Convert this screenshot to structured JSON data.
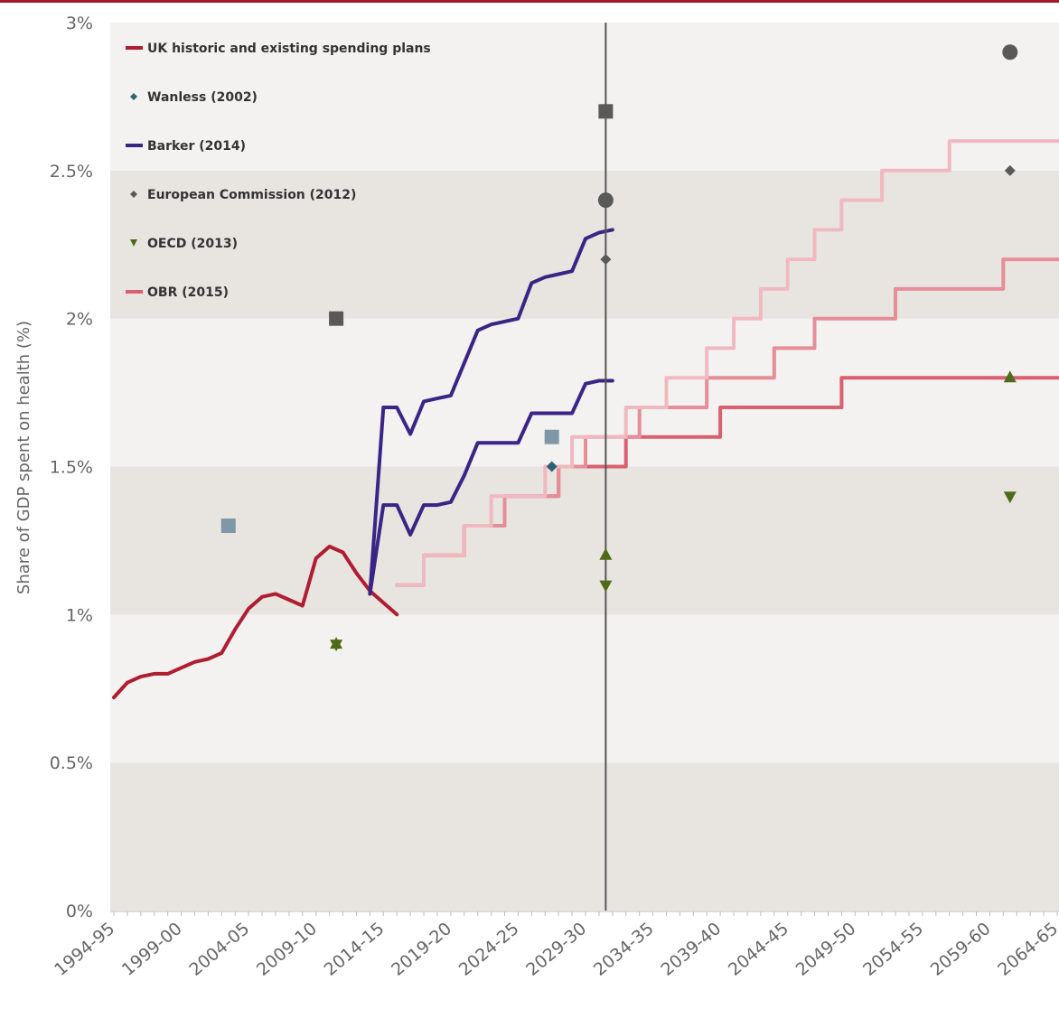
{
  "chart_data": {
    "type": "line",
    "ylabel": "Share of GDP spent on health (%)",
    "ylim": [
      0,
      3
    ],
    "y_ticks": [
      {
        "value": 0,
        "label": "0%"
      },
      {
        "value": 0.5,
        "label": "0.5%"
      },
      {
        "value": 1,
        "label": "1%"
      },
      {
        "value": 1.5,
        "label": "1.5%"
      },
      {
        "value": 2,
        "label": "2%"
      },
      {
        "value": 2.5,
        "label": "2.5%"
      },
      {
        "value": 3,
        "label": "3%"
      }
    ],
    "x_ticks": [
      "1994-95",
      "1999-00",
      "2004-05",
      "2009-10",
      "2014-15",
      "2019-20",
      "2024-25",
      "2029-30",
      "2034-35",
      "2039-40",
      "2044-45",
      "2049-50",
      "2054-55",
      "2059-60",
      "2064-65"
    ],
    "x_range": [
      1994,
      2064
    ],
    "reference_line_x": 2030.5,
    "legend": {
      "placement": "top-left",
      "entries": [
        {
          "label": "UK historic and existing spending plans",
          "marker": "line",
          "color": "#b01c30"
        },
        {
          "label": "Wanless (2002)",
          "marker": "diamond",
          "color": "#2e6272"
        },
        {
          "label": "Barker (2014)",
          "marker": "line",
          "color": "#3a2485"
        },
        {
          "label": "European Commission (2012)",
          "marker": "diamond",
          "color": "#595959"
        },
        {
          "label": "OECD (2013)",
          "marker": "triangle-down",
          "color": "#4e6b1a"
        },
        {
          "label": "OBR (2015)",
          "marker": "line",
          "color": "#d9606e"
        }
      ]
    },
    "series": [
      {
        "name": "UK historic and existing spending plans",
        "color": "#b01c30",
        "style": "line",
        "points": [
          [
            1994,
            0.72
          ],
          [
            1995,
            0.77
          ],
          [
            1996,
            0.79
          ],
          [
            1997,
            0.8
          ],
          [
            1998,
            0.8
          ],
          [
            1999,
            0.82
          ],
          [
            2000,
            0.84
          ],
          [
            2001,
            0.85
          ],
          [
            2002,
            0.87
          ],
          [
            2003,
            0.95
          ],
          [
            2004,
            1.02
          ],
          [
            2005,
            1.06
          ],
          [
            2006,
            1.07
          ],
          [
            2007,
            1.05
          ],
          [
            2008,
            1.03
          ],
          [
            2009,
            1.19
          ],
          [
            2010,
            1.23
          ],
          [
            2011,
            1.21
          ],
          [
            2012,
            1.14
          ],
          [
            2013,
            1.08
          ],
          [
            2014,
            1.04
          ],
          [
            2015,
            1.0
          ]
        ]
      },
      {
        "name": "Barker (2014)",
        "color": "#3a2485",
        "style": "line",
        "points": [
          [
            2013,
            1.07
          ],
          [
            2014,
            1.7
          ],
          [
            2015,
            1.7
          ],
          [
            2016,
            1.61
          ],
          [
            2017,
            1.72
          ],
          [
            2018,
            1.73
          ],
          [
            2019,
            1.74
          ],
          [
            2020,
            1.85
          ],
          [
            2021,
            1.96
          ],
          [
            2022,
            1.98
          ],
          [
            2023,
            1.99
          ],
          [
            2024,
            2.0
          ],
          [
            2025,
            2.12
          ],
          [
            2026,
            2.14
          ],
          [
            2027,
            2.15
          ],
          [
            2028,
            2.16
          ],
          [
            2029,
            2.27
          ],
          [
            2030,
            2.29
          ],
          [
            2031,
            2.3
          ]
        ]
      },
      {
        "name": "Barker (2014)",
        "color": "#3a2485",
        "style": "line",
        "points": [
          [
            2013,
            1.07
          ],
          [
            2014,
            1.37
          ],
          [
            2015,
            1.37
          ],
          [
            2016,
            1.27
          ],
          [
            2017,
            1.37
          ],
          [
            2018,
            1.37
          ],
          [
            2019,
            1.38
          ],
          [
            2020,
            1.47
          ],
          [
            2021,
            1.58
          ],
          [
            2022,
            1.58
          ],
          [
            2023,
            1.58
          ],
          [
            2024,
            1.58
          ],
          [
            2025,
            1.68
          ],
          [
            2026,
            1.68
          ],
          [
            2027,
            1.68
          ],
          [
            2028,
            1.68
          ],
          [
            2029,
            1.78
          ],
          [
            2030,
            1.79
          ],
          [
            2031,
            1.79
          ]
        ]
      },
      {
        "name": "OBR (2015)",
        "color": "#d9606e",
        "style": "step",
        "points": [
          [
            2015,
            1.1
          ],
          [
            2016,
            1.1
          ],
          [
            2017,
            1.2
          ],
          [
            2018,
            1.2
          ],
          [
            2019,
            1.2
          ],
          [
            2020,
            1.3
          ],
          [
            2021,
            1.3
          ],
          [
            2022,
            1.3
          ],
          [
            2023,
            1.4
          ],
          [
            2024,
            1.4
          ],
          [
            2025,
            1.4
          ],
          [
            2026,
            1.4
          ],
          [
            2027,
            1.5
          ],
          [
            2028,
            1.5
          ],
          [
            2029,
            1.5
          ],
          [
            2030,
            1.5
          ],
          [
            2031,
            1.5
          ],
          [
            2032,
            1.6
          ],
          [
            2033,
            1.6
          ],
          [
            2034,
            1.6
          ],
          [
            2035,
            1.6
          ],
          [
            2036,
            1.6
          ],
          [
            2037,
            1.6
          ],
          [
            2038,
            1.6
          ],
          [
            2039,
            1.7
          ],
          [
            2040,
            1.7
          ],
          [
            2041,
            1.7
          ],
          [
            2042,
            1.7
          ],
          [
            2043,
            1.7
          ],
          [
            2044,
            1.7
          ],
          [
            2045,
            1.7
          ],
          [
            2046,
            1.7
          ],
          [
            2047,
            1.7
          ],
          [
            2048,
            1.8
          ],
          [
            2049,
            1.8
          ],
          [
            2050,
            1.8
          ],
          [
            2051,
            1.8
          ],
          [
            2052,
            1.8
          ],
          [
            2053,
            1.8
          ],
          [
            2054,
            1.8
          ],
          [
            2055,
            1.8
          ],
          [
            2056,
            1.8
          ],
          [
            2057,
            1.8
          ],
          [
            2058,
            1.8
          ],
          [
            2059,
            1.8
          ],
          [
            2060,
            1.8
          ],
          [
            2061,
            1.8
          ],
          [
            2062,
            1.8
          ],
          [
            2063,
            1.8
          ],
          [
            2064,
            1.8
          ]
        ]
      },
      {
        "name": "OBR (2015)",
        "color": "#e68d98",
        "style": "step",
        "points": [
          [
            2015,
            1.1
          ],
          [
            2016,
            1.1
          ],
          [
            2017,
            1.2
          ],
          [
            2018,
            1.2
          ],
          [
            2019,
            1.2
          ],
          [
            2020,
            1.3
          ],
          [
            2021,
            1.3
          ],
          [
            2022,
            1.3
          ],
          [
            2023,
            1.4
          ],
          [
            2024,
            1.4
          ],
          [
            2025,
            1.4
          ],
          [
            2026,
            1.4
          ],
          [
            2027,
            1.5
          ],
          [
            2028,
            1.5
          ],
          [
            2029,
            1.6
          ],
          [
            2030,
            1.6
          ],
          [
            2031,
            1.6
          ],
          [
            2032,
            1.6
          ],
          [
            2033,
            1.7
          ],
          [
            2034,
            1.7
          ],
          [
            2035,
            1.7
          ],
          [
            2036,
            1.7
          ],
          [
            2037,
            1.7
          ],
          [
            2038,
            1.8
          ],
          [
            2039,
            1.8
          ],
          [
            2040,
            1.8
          ],
          [
            2041,
            1.8
          ],
          [
            2042,
            1.8
          ],
          [
            2043,
            1.9
          ],
          [
            2044,
            1.9
          ],
          [
            2045,
            1.9
          ],
          [
            2046,
            2.0
          ],
          [
            2047,
            2.0
          ],
          [
            2048,
            2.0
          ],
          [
            2049,
            2.0
          ],
          [
            2050,
            2.0
          ],
          [
            2051,
            2.0
          ],
          [
            2052,
            2.1
          ],
          [
            2053,
            2.1
          ],
          [
            2054,
            2.1
          ],
          [
            2055,
            2.1
          ],
          [
            2056,
            2.1
          ],
          [
            2057,
            2.1
          ],
          [
            2058,
            2.1
          ],
          [
            2059,
            2.1
          ],
          [
            2060,
            2.2
          ],
          [
            2061,
            2.2
          ],
          [
            2062,
            2.2
          ],
          [
            2063,
            2.2
          ],
          [
            2064,
            2.2
          ]
        ]
      },
      {
        "name": "OBR (2015)",
        "color": "#f0b9c0",
        "style": "step",
        "points": [
          [
            2015,
            1.1
          ],
          [
            2016,
            1.1
          ],
          [
            2017,
            1.2
          ],
          [
            2018,
            1.2
          ],
          [
            2019,
            1.2
          ],
          [
            2020,
            1.3
          ],
          [
            2021,
            1.3
          ],
          [
            2022,
            1.4
          ],
          [
            2023,
            1.4
          ],
          [
            2024,
            1.4
          ],
          [
            2025,
            1.4
          ],
          [
            2026,
            1.5
          ],
          [
            2027,
            1.5
          ],
          [
            2028,
            1.6
          ],
          [
            2029,
            1.6
          ],
          [
            2030,
            1.6
          ],
          [
            2031,
            1.6
          ],
          [
            2032,
            1.7
          ],
          [
            2033,
            1.7
          ],
          [
            2034,
            1.7
          ],
          [
            2035,
            1.8
          ],
          [
            2036,
            1.8
          ],
          [
            2037,
            1.8
          ],
          [
            2038,
            1.9
          ],
          [
            2039,
            1.9
          ],
          [
            2040,
            2.0
          ],
          [
            2041,
            2.0
          ],
          [
            2042,
            2.1
          ],
          [
            2043,
            2.1
          ],
          [
            2044,
            2.2
          ],
          [
            2045,
            2.2
          ],
          [
            2046,
            2.3
          ],
          [
            2047,
            2.3
          ],
          [
            2048,
            2.4
          ],
          [
            2049,
            2.4
          ],
          [
            2050,
            2.4
          ],
          [
            2051,
            2.5
          ],
          [
            2052,
            2.5
          ],
          [
            2053,
            2.5
          ],
          [
            2054,
            2.5
          ],
          [
            2055,
            2.5
          ],
          [
            2056,
            2.6
          ],
          [
            2057,
            2.6
          ],
          [
            2058,
            2.6
          ],
          [
            2059,
            2.6
          ],
          [
            2060,
            2.6
          ],
          [
            2061,
            2.6
          ],
          [
            2062,
            2.6
          ],
          [
            2063,
            2.6
          ],
          [
            2064,
            2.6
          ]
        ]
      }
    ],
    "markers": [
      {
        "x": 2002.5,
        "y": 1.3,
        "shape": "square",
        "color": "#7f97a6"
      },
      {
        "x": 2010.5,
        "y": 2.0,
        "shape": "square",
        "color": "#595959"
      },
      {
        "x": 2010.5,
        "y": 0.9,
        "shape": "triangle-up",
        "color": "#4e6b1a"
      },
      {
        "x": 2010.5,
        "y": 0.9,
        "shape": "triangle-down",
        "color": "#4e6b1a"
      },
      {
        "x": 2026.5,
        "y": 1.6,
        "shape": "square",
        "color": "#7f97a6"
      },
      {
        "x": 2026.5,
        "y": 1.5,
        "shape": "diamond",
        "color": "#2e6272"
      },
      {
        "x": 2030.5,
        "y": 2.7,
        "shape": "square",
        "color": "#595959"
      },
      {
        "x": 2030.5,
        "y": 2.4,
        "shape": "circle",
        "color": "#595959"
      },
      {
        "x": 2030.5,
        "y": 2.2,
        "shape": "diamond",
        "color": "#595959"
      },
      {
        "x": 2030.5,
        "y": 1.2,
        "shape": "triangle-up",
        "color": "#4e6b1a"
      },
      {
        "x": 2030.5,
        "y": 1.1,
        "shape": "triangle-down",
        "color": "#4e6b1a"
      },
      {
        "x": 2060.5,
        "y": 2.9,
        "shape": "circle",
        "color": "#595959"
      },
      {
        "x": 2060.5,
        "y": 2.5,
        "shape": "diamond",
        "color": "#595959"
      },
      {
        "x": 2060.5,
        "y": 1.8,
        "shape": "triangle-up",
        "color": "#4e6b1a"
      },
      {
        "x": 2060.5,
        "y": 1.4,
        "shape": "triangle-down",
        "color": "#4e6b1a"
      }
    ]
  }
}
